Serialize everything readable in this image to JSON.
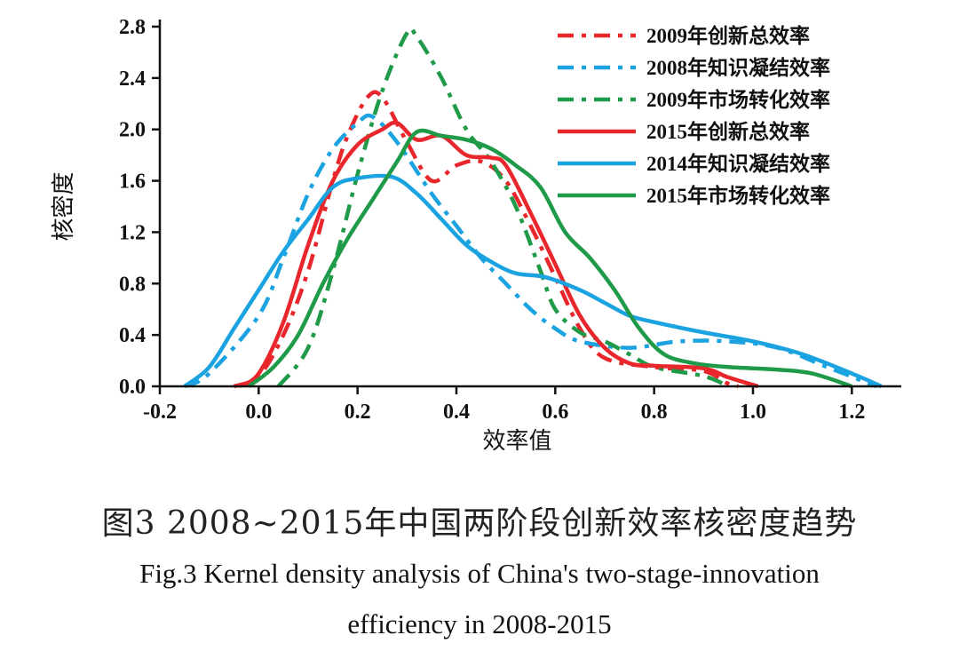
{
  "chart_data": {
    "type": "line",
    "xlabel": "效率值",
    "ylabel": "核密度",
    "xlim": [
      -0.2,
      1.3
    ],
    "ylim": [
      0,
      2.8
    ],
    "x_ticks": [
      "-0.2",
      "0.0",
      "0.2",
      "0.4",
      "0.6",
      "0.8",
      "1.0",
      "1.2"
    ],
    "y_ticks": [
      "0.0",
      "0.4",
      "0.8",
      "1.2",
      "1.6",
      "2.0",
      "2.4",
      "2.8"
    ],
    "legend_position": "top-right",
    "series": [
      {
        "name": "2009年创新总效率",
        "color": "#e8262b",
        "dash": "dashdot",
        "points": [
          [
            -0.05,
            0
          ],
          [
            0,
            0.08
          ],
          [
            0.05,
            0.4
          ],
          [
            0.1,
            0.9
          ],
          [
            0.15,
            1.6
          ],
          [
            0.18,
            1.95
          ],
          [
            0.22,
            2.25
          ],
          [
            0.25,
            2.25
          ],
          [
            0.3,
            1.9
          ],
          [
            0.35,
            1.6
          ],
          [
            0.4,
            1.72
          ],
          [
            0.45,
            1.75
          ],
          [
            0.5,
            1.6
          ],
          [
            0.55,
            1.25
          ],
          [
            0.6,
            0.85
          ],
          [
            0.65,
            0.45
          ],
          [
            0.7,
            0.22
          ],
          [
            0.8,
            0.15
          ],
          [
            0.9,
            0.12
          ],
          [
            0.95,
            0.02
          ],
          [
            0.97,
            0
          ]
        ]
      },
      {
        "name": "2008年知识凝结效率",
        "color": "#1aa3e0",
        "dash": "dashdot",
        "points": [
          [
            -0.15,
            0
          ],
          [
            -0.1,
            0.1
          ],
          [
            0,
            0.55
          ],
          [
            0.05,
            1.0
          ],
          [
            0.1,
            1.5
          ],
          [
            0.15,
            1.85
          ],
          [
            0.2,
            2.05
          ],
          [
            0.23,
            2.1
          ],
          [
            0.28,
            1.9
          ],
          [
            0.35,
            1.5
          ],
          [
            0.4,
            1.25
          ],
          [
            0.45,
            1.0
          ],
          [
            0.5,
            0.8
          ],
          [
            0.55,
            0.6
          ],
          [
            0.6,
            0.45
          ],
          [
            0.65,
            0.35
          ],
          [
            0.75,
            0.3
          ],
          [
            0.85,
            0.35
          ],
          [
            0.95,
            0.35
          ],
          [
            1.05,
            0.3
          ],
          [
            1.15,
            0.15
          ],
          [
            1.25,
            0
          ]
        ]
      },
      {
        "name": "2009年市场转化效率",
        "color": "#1f9a48",
        "dash": "dashdot",
        "points": [
          [
            0.04,
            0
          ],
          [
            0.1,
            0.3
          ],
          [
            0.15,
            0.9
          ],
          [
            0.2,
            1.65
          ],
          [
            0.25,
            2.3
          ],
          [
            0.3,
            2.75
          ],
          [
            0.32,
            2.72
          ],
          [
            0.37,
            2.4
          ],
          [
            0.42,
            2.0
          ],
          [
            0.47,
            1.75
          ],
          [
            0.52,
            1.4
          ],
          [
            0.57,
            0.9
          ],
          [
            0.6,
            0.6
          ],
          [
            0.65,
            0.42
          ],
          [
            0.7,
            0.35
          ],
          [
            0.75,
            0.25
          ],
          [
            0.8,
            0.15
          ],
          [
            0.9,
            0.08
          ],
          [
            0.95,
            0
          ]
        ]
      },
      {
        "name": "2015年创新总效率",
        "color": "#e8262b",
        "dash": "solid",
        "points": [
          [
            -0.04,
            0
          ],
          [
            0,
            0.1
          ],
          [
            0.05,
            0.5
          ],
          [
            0.1,
            1.1
          ],
          [
            0.15,
            1.6
          ],
          [
            0.2,
            1.88
          ],
          [
            0.25,
            2.0
          ],
          [
            0.28,
            2.05
          ],
          [
            0.32,
            1.92
          ],
          [
            0.37,
            1.95
          ],
          [
            0.42,
            1.8
          ],
          [
            0.47,
            1.78
          ],
          [
            0.5,
            1.72
          ],
          [
            0.55,
            1.35
          ],
          [
            0.6,
            0.95
          ],
          [
            0.65,
            0.55
          ],
          [
            0.7,
            0.3
          ],
          [
            0.75,
            0.18
          ],
          [
            0.8,
            0.16
          ],
          [
            0.9,
            0.14
          ],
          [
            0.95,
            0.07
          ],
          [
            1.01,
            0
          ]
        ]
      },
      {
        "name": "2014年知识凝结效率",
        "color": "#1aa3e0",
        "dash": "solid",
        "points": [
          [
            -0.15,
            0
          ],
          [
            -0.1,
            0.15
          ],
          [
            -0.05,
            0.45
          ],
          [
            0,
            0.75
          ],
          [
            0.05,
            1.05
          ],
          [
            0.1,
            1.3
          ],
          [
            0.15,
            1.55
          ],
          [
            0.2,
            1.62
          ],
          [
            0.27,
            1.63
          ],
          [
            0.32,
            1.5
          ],
          [
            0.37,
            1.3
          ],
          [
            0.42,
            1.1
          ],
          [
            0.47,
            0.97
          ],
          [
            0.52,
            0.88
          ],
          [
            0.58,
            0.85
          ],
          [
            0.65,
            0.75
          ],
          [
            0.7,
            0.65
          ],
          [
            0.75,
            0.55
          ],
          [
            0.8,
            0.5
          ],
          [
            0.9,
            0.42
          ],
          [
            1.0,
            0.35
          ],
          [
            1.1,
            0.25
          ],
          [
            1.2,
            0.1
          ],
          [
            1.26,
            0
          ]
        ]
      },
      {
        "name": "2015年市场转化效率",
        "color": "#1f9a48",
        "dash": "solid",
        "points": [
          [
            -0.02,
            0
          ],
          [
            0.03,
            0.15
          ],
          [
            0.08,
            0.4
          ],
          [
            0.13,
            0.8
          ],
          [
            0.18,
            1.15
          ],
          [
            0.23,
            1.45
          ],
          [
            0.28,
            1.75
          ],
          [
            0.32,
            1.98
          ],
          [
            0.37,
            1.95
          ],
          [
            0.42,
            1.92
          ],
          [
            0.47,
            1.85
          ],
          [
            0.52,
            1.72
          ],
          [
            0.57,
            1.55
          ],
          [
            0.62,
            1.2
          ],
          [
            0.67,
            1.0
          ],
          [
            0.72,
            0.75
          ],
          [
            0.77,
            0.45
          ],
          [
            0.82,
            0.25
          ],
          [
            0.88,
            0.18
          ],
          [
            0.95,
            0.15
          ],
          [
            1.05,
            0.13
          ],
          [
            1.12,
            0.1
          ],
          [
            1.2,
            0
          ]
        ]
      }
    ]
  },
  "caption": {
    "cn": "图3   2008~2015年中国两阶段创新效率核密度趋势",
    "en_line1": "Fig.3 Kernel density analysis of China's two-stage-innovation",
    "en_line2": "efficiency in 2008-2015"
  }
}
